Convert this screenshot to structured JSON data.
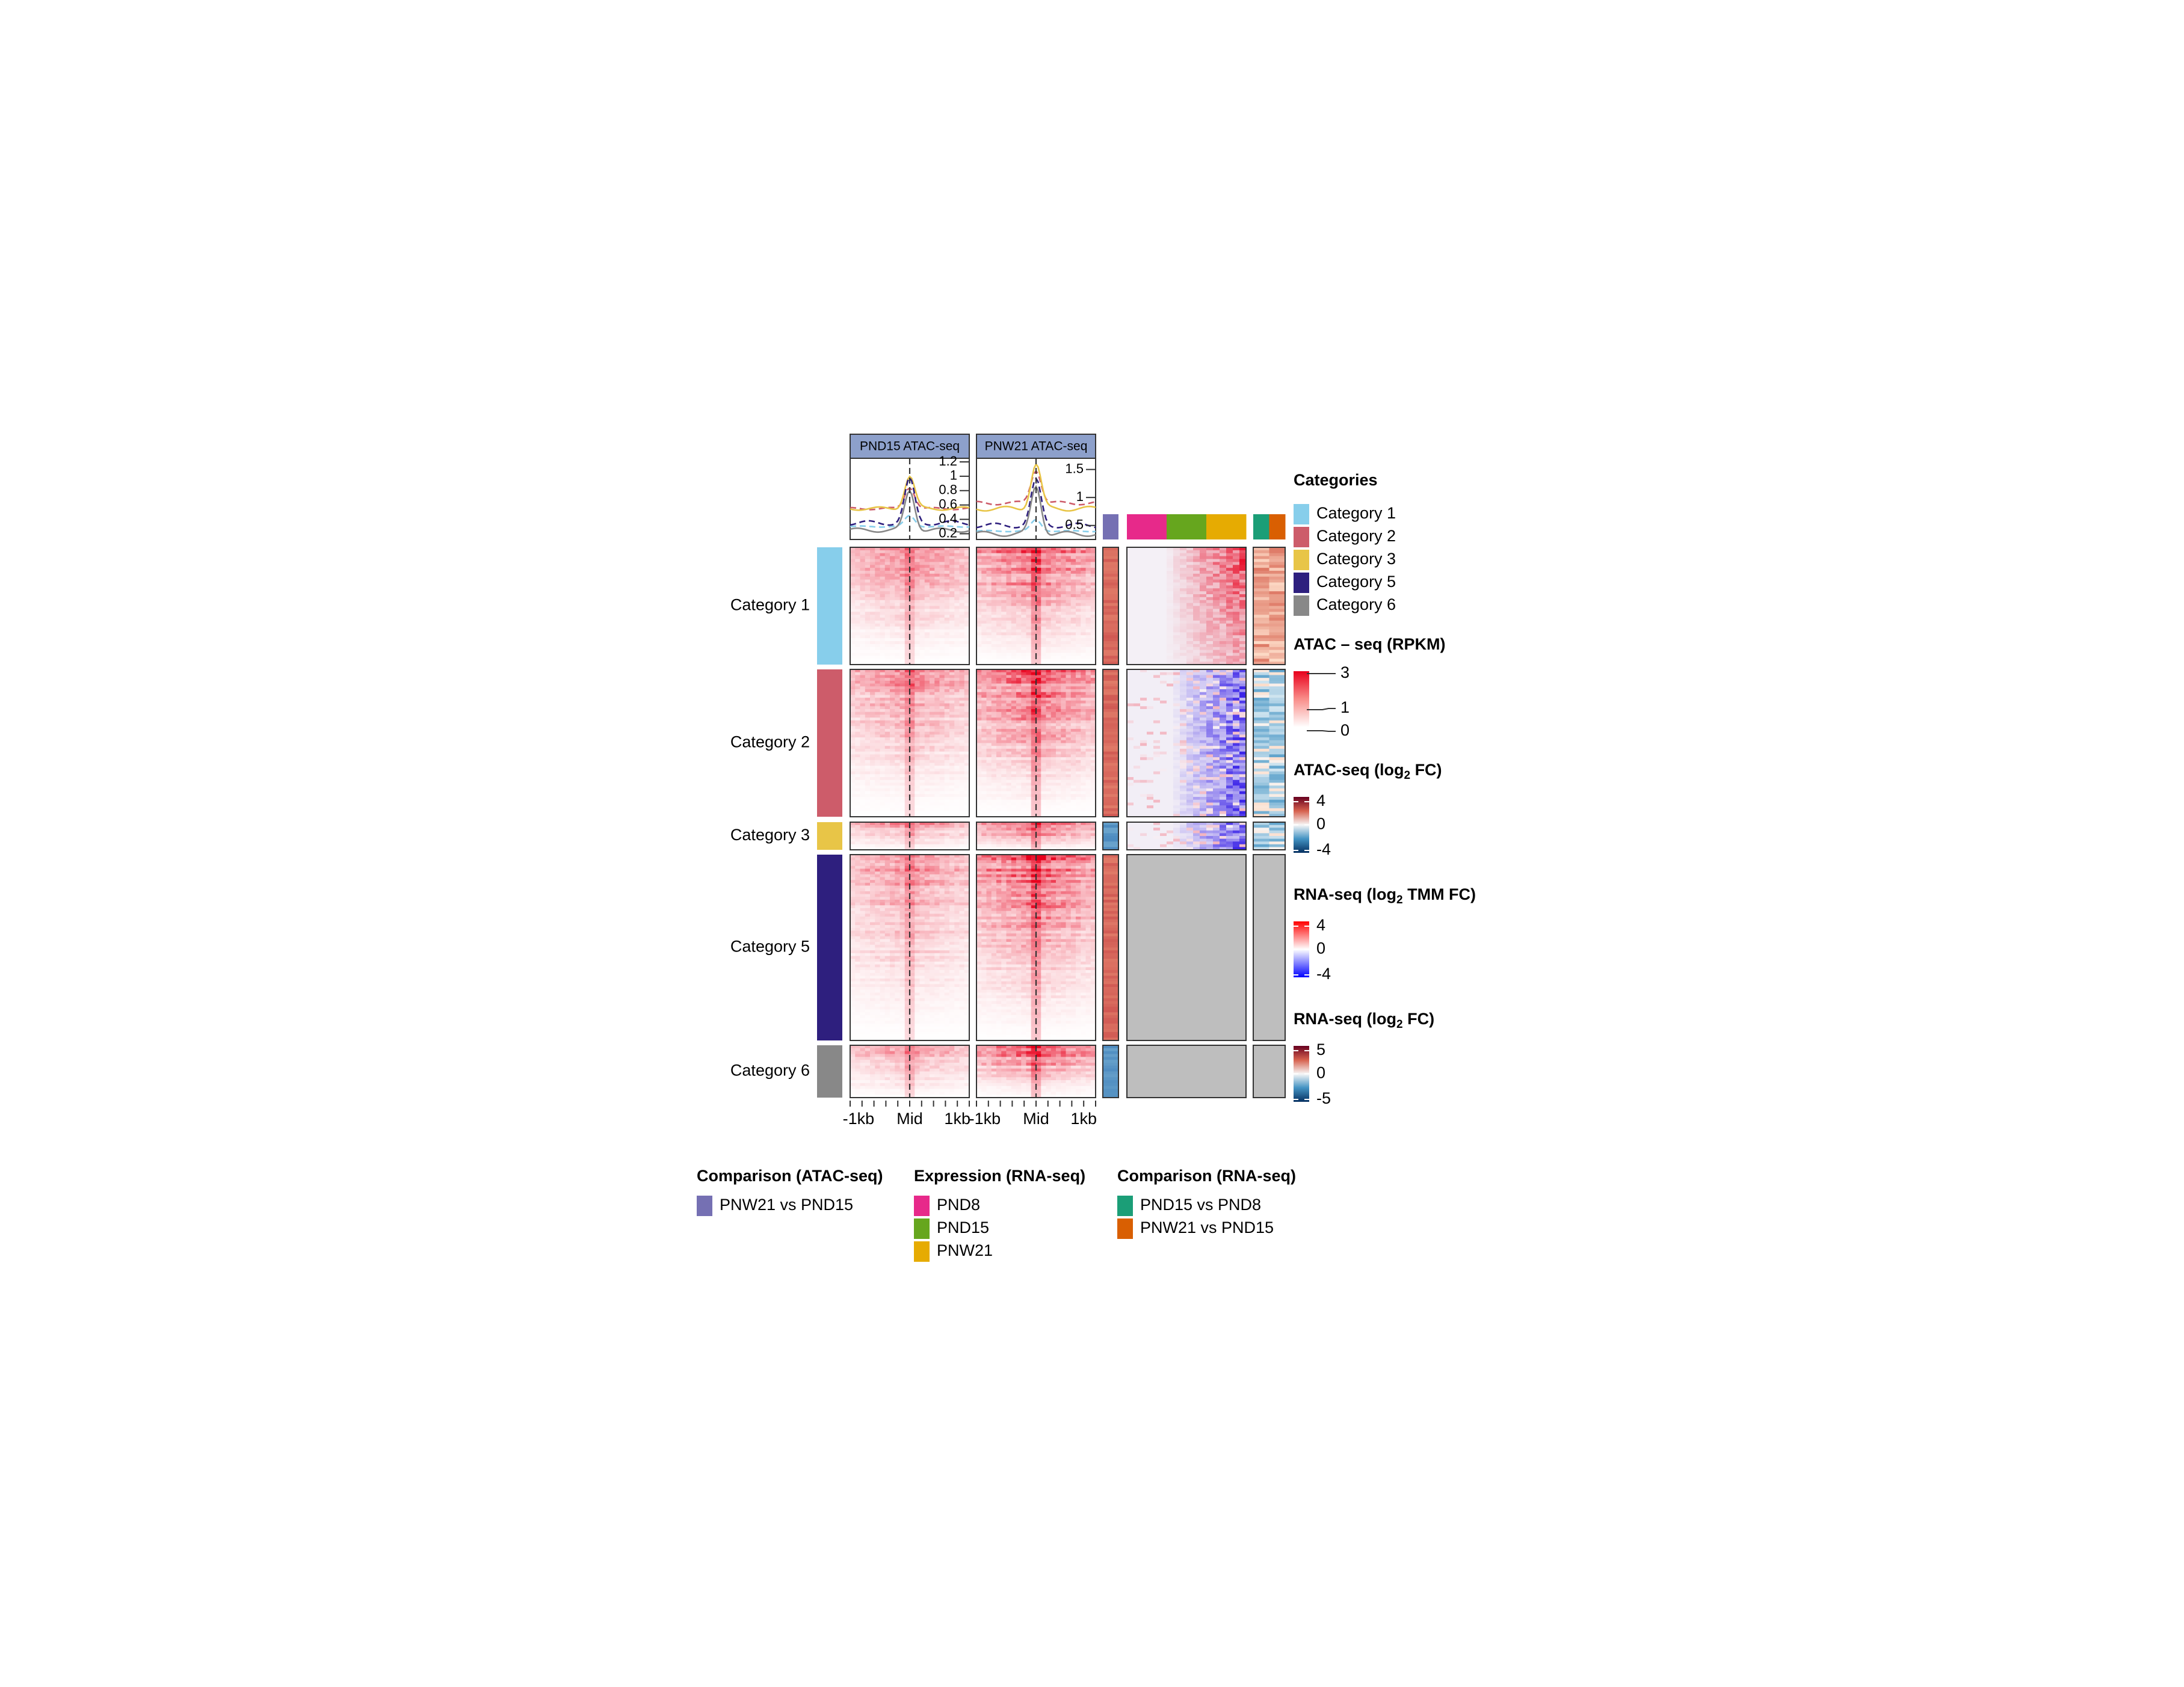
{
  "chart_data": {
    "type": "heatmap",
    "title": "",
    "profile_panels": [
      {
        "title": "PND15 ATAC-seq",
        "yticks": [
          "1.2",
          "1",
          "0.8",
          "0.6",
          "0.4",
          "0.2"
        ],
        "ytick_values": [
          1.2,
          1.0,
          0.8,
          0.6,
          0.4,
          0.2
        ],
        "ylim": [
          0.12,
          1.25
        ],
        "series": [
          {
            "name": "Category 1",
            "color": "#87CEEB",
            "style": "dashed",
            "peak": 0.45,
            "base": 0.3
          },
          {
            "name": "Category 2",
            "color": "#CD5C6A",
            "style": "dashed",
            "peak": 0.85,
            "base": 0.55
          },
          {
            "name": "Category 3",
            "color": "#E8C547",
            "style": "solid",
            "peak": 1.0,
            "base": 0.55
          },
          {
            "name": "Category 5",
            "color": "#2E1F7E",
            "style": "dashed",
            "peak": 0.95,
            "base": 0.35
          },
          {
            "name": "Category 6",
            "color": "#888888",
            "style": "solid",
            "peak": 0.8,
            "base": 0.25
          }
        ]
      },
      {
        "title": "PNW21 ATAC-seq",
        "yticks": [
          "1.5",
          "1",
          "0.5"
        ],
        "ytick_values": [
          1.5,
          1.0,
          0.5
        ],
        "ylim": [
          0.25,
          1.7
        ],
        "series": [
          {
            "name": "Category 1",
            "color": "#87CEEB",
            "style": "dashed",
            "peak": 0.6,
            "base": 0.4
          },
          {
            "name": "Category 2",
            "color": "#CD5C6A",
            "style": "dashed",
            "peak": 1.5,
            "base": 0.9
          },
          {
            "name": "Category 3",
            "color": "#E8C547",
            "style": "solid",
            "peak": 1.6,
            "base": 0.8
          },
          {
            "name": "Category 5",
            "color": "#2E1F7E",
            "style": "dashed",
            "peak": 1.3,
            "base": 0.5
          },
          {
            "name": "Category 6",
            "color": "#888888",
            "style": "solid",
            "peak": 1.2,
            "base": 0.35
          }
        ]
      }
    ],
    "xticks": [
      "-1kb",
      "Mid",
      "1kb"
    ],
    "row_groups": [
      {
        "name": "Category 1",
        "color": "#87CEEB",
        "rows": 40,
        "has_rna": true,
        "fc_sign": "up"
      },
      {
        "name": "Category 2",
        "color": "#CD5C6A",
        "rows": 52,
        "has_rna": true,
        "fc_sign": "up"
      },
      {
        "name": "Category 3",
        "color": "#E8C547",
        "rows": 10,
        "has_rna": true,
        "fc_sign": "down"
      },
      {
        "name": "Category 5",
        "color": "#2E1F7E",
        "rows": 66,
        "has_rna": false,
        "fc_sign": "up"
      },
      {
        "name": "Category 6",
        "color": "#888888",
        "rows": 18,
        "has_rna": false,
        "fc_sign": "down"
      }
    ],
    "column_annotations": {
      "atac_comparison": {
        "label": "PNW21 vs PND15",
        "color": "#7570B3"
      },
      "expression": [
        {
          "label": "PND8",
          "color": "#E7298A"
        },
        {
          "label": "PND15",
          "color": "#66A61E"
        },
        {
          "label": "PNW21",
          "color": "#E6AB02"
        }
      ],
      "rna_comparison": [
        {
          "label": "PND15 vs PND8",
          "color": "#1B9E77"
        },
        {
          "label": "PNW21 vs PND15",
          "color": "#D95F02"
        }
      ]
    },
    "legends": {
      "categories_title": "Categories",
      "categories": [
        {
          "label": "Category 1",
          "color": "#87CEEB"
        },
        {
          "label": "Category 2",
          "color": "#CD5C6A"
        },
        {
          "label": "Category 3",
          "color": "#E8C547"
        },
        {
          "label": "Category 5",
          "color": "#2E1F7E"
        },
        {
          "label": "Category 6",
          "color": "#888888"
        }
      ],
      "atac_rpkm": {
        "title": "ATAC – seq (RPKM)",
        "ticks": [
          "3",
          "1",
          "0"
        ]
      },
      "atac_fc": {
        "title_main": "ATAC-seq (log",
        "title_sub": "2",
        "title_end": " FC)",
        "ticks": [
          "4",
          "0",
          "-4"
        ]
      },
      "rna_tmm": {
        "title_main": "RNA-seq (log",
        "title_sub": "2",
        "title_end": " TMM FC)",
        "ticks": [
          "4",
          "0",
          "-4"
        ]
      },
      "rna_fc": {
        "title_main": "RNA-seq (log",
        "title_sub": "2",
        "title_end": " FC)",
        "ticks": [
          "5",
          "0",
          "-5"
        ]
      }
    },
    "bottom_legends": [
      {
        "title": "Comparison (ATAC-seq)",
        "items": [
          {
            "label": "PNW21 vs PND15",
            "color": "#7570B3"
          }
        ]
      },
      {
        "title": "Expression (RNA-seq)",
        "items": [
          {
            "label": "PND8",
            "color": "#E7298A"
          },
          {
            "label": "PND15",
            "color": "#66A61E"
          },
          {
            "label": "PNW21",
            "color": "#E6AB02"
          }
        ]
      },
      {
        "title": "Comparison (RNA-seq)",
        "items": [
          {
            "label": "PND15 vs PND8",
            "color": "#1B9E77"
          },
          {
            "label": "PNW21 vs PND15",
            "color": "#D95F02"
          }
        ]
      }
    ]
  }
}
